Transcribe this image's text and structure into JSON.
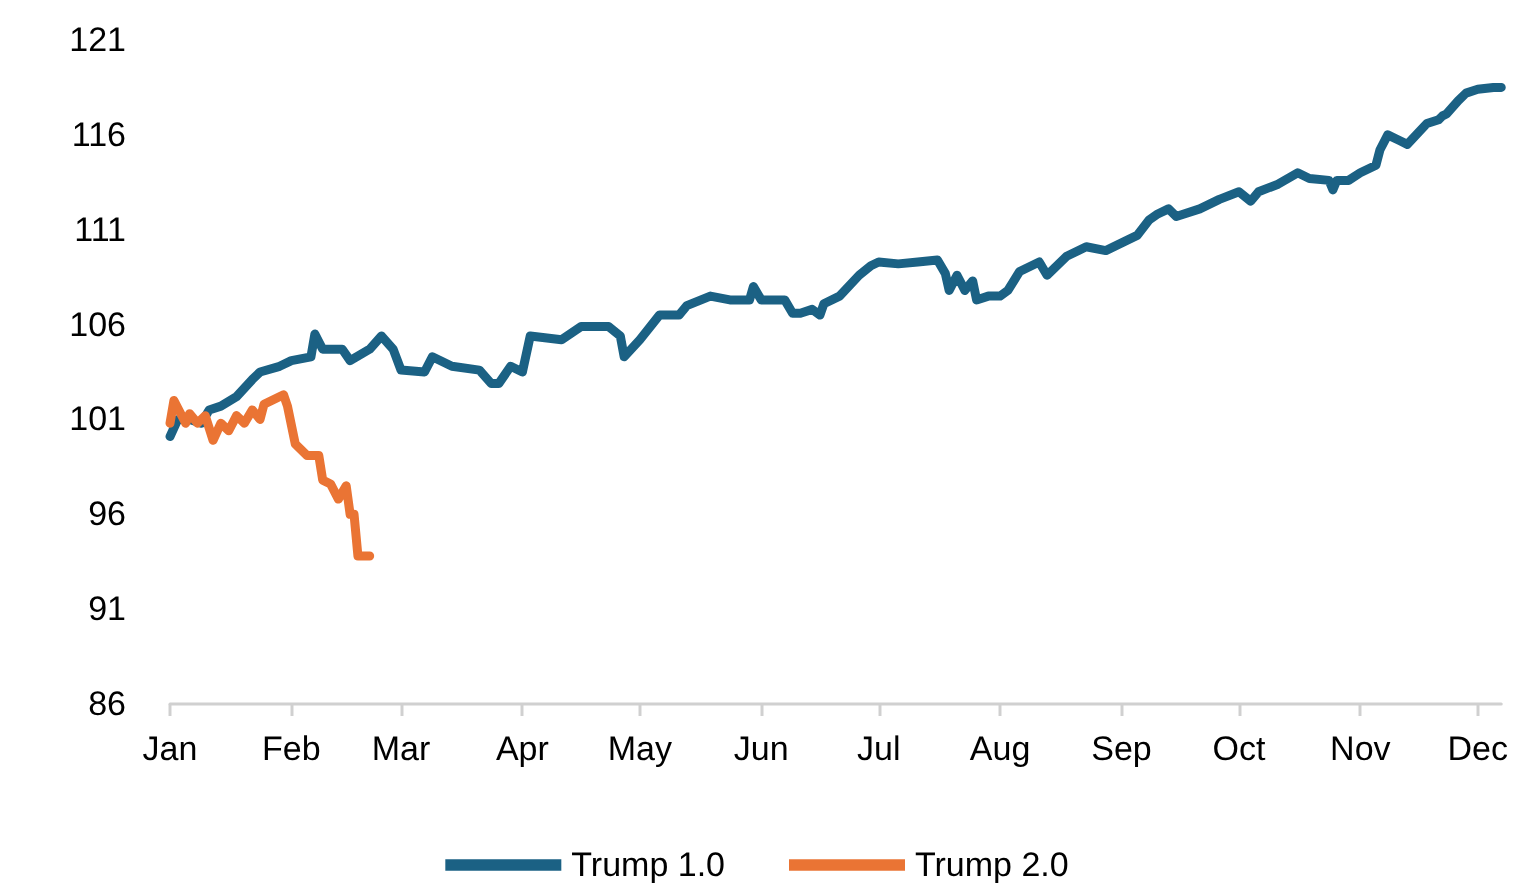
{
  "chart_data": {
    "type": "line",
    "legend": "bottom",
    "grid": false,
    "marker": "none",
    "line_style": "solid",
    "xlim": [
      "--01-01",
      "--12-07"
    ],
    "xticks": [
      {
        "value": "--01-01",
        "label": "Jan"
      },
      {
        "value": "--02-01",
        "label": "Feb"
      },
      {
        "value": "--03-01",
        "label": "Mar"
      },
      {
        "value": "--04-01",
        "label": "Apr"
      },
      {
        "value": "--05-01",
        "label": "May"
      },
      {
        "value": "--06-01",
        "label": "Jun"
      },
      {
        "value": "--07-01",
        "label": "Jul"
      },
      {
        "value": "--08-01",
        "label": "Aug"
      },
      {
        "value": "--09-01",
        "label": "Sep"
      },
      {
        "value": "--10-01",
        "label": "Oct"
      },
      {
        "value": "--11-01",
        "label": "Nov"
      },
      {
        "value": "--12-01",
        "label": "Dec"
      }
    ],
    "ylim": [
      86,
      121
    ],
    "yticks": [
      86,
      91,
      96,
      101,
      106,
      111,
      116,
      121
    ],
    "series": [
      {
        "name": "Trump 1.0",
        "color": "#1b6184",
        "x": [
          "--01-01",
          "--01-03",
          "--01-06",
          "--01-09",
          "--01-11",
          "--01-14",
          "--01-18",
          "--01-22",
          "--01-24",
          "--01-29",
          "--02-01",
          "--02-06",
          "--02-07",
          "--02-09",
          "--02-14",
          "--02-16",
          "--02-21",
          "--02-24",
          "--02-27",
          "--03-01",
          "--03-07",
          "--03-09",
          "--03-14",
          "--03-21",
          "--03-24",
          "--03-26",
          "--03-29",
          "--04-01",
          "--04-03",
          "--04-11",
          "--04-16",
          "--04-23",
          "--04-26",
          "--04-27",
          "--05-01",
          "--05-06",
          "--05-11",
          "--05-13",
          "--05-19",
          "--05-24",
          "--05-29",
          "--05-30",
          "--06-01",
          "--06-07",
          "--06-09",
          "--06-11",
          "--06-14",
          "--06-16",
          "--06-17",
          "--06-21",
          "--06-26",
          "--06-29",
          "--07-01",
          "--07-06",
          "--07-11",
          "--07-16",
          "--07-18",
          "--07-19",
          "--07-21",
          "--07-23",
          "--07-25",
          "--07-26",
          "--07-29",
          "--08-01",
          "--08-03",
          "--08-06",
          "--08-11",
          "--08-13",
          "--08-18",
          "--08-23",
          "--08-28",
          "--08-31",
          "--09-05",
          "--09-08",
          "--09-10",
          "--09-13",
          "--09-15",
          "--09-21",
          "--09-26",
          "--10-01",
          "--10-04",
          "--10-06",
          "--10-11",
          "--10-16",
          "--10-19",
          "--10-24",
          "--10-25",
          "--10-26",
          "--10-29",
          "--11-01",
          "--11-05",
          "--11-06",
          "--11-08",
          "--11-11",
          "--11-13",
          "--11-18",
          "--11-21",
          "--11-22",
          "--11-23",
          "--11-26",
          "--11-28",
          "--12-01",
          "--12-05",
          "--12-07"
        ],
        "values": [
          100.1,
          101.0,
          101.0,
          100.8,
          101.5,
          101.7,
          102.2,
          103.1,
          103.5,
          103.8,
          104.1,
          104.3,
          105.5,
          104.7,
          104.7,
          104.1,
          104.7,
          105.4,
          104.7,
          103.6,
          103.5,
          104.3,
          103.8,
          103.6,
          102.9,
          102.9,
          103.8,
          103.5,
          105.4,
          105.2,
          105.9,
          105.9,
          105.4,
          104.3,
          105.2,
          106.5,
          106.5,
          107.0,
          107.5,
          107.3,
          107.3,
          108.0,
          107.3,
          107.3,
          106.6,
          106.6,
          106.8,
          106.5,
          107.1,
          107.5,
          108.6,
          109.1,
          109.3,
          109.2,
          109.3,
          109.4,
          108.7,
          107.8,
          108.6,
          107.8,
          108.3,
          107.3,
          107.5,
          107.5,
          107.8,
          108.8,
          109.3,
          108.6,
          109.6,
          110.1,
          109.9,
          110.2,
          110.7,
          111.5,
          111.8,
          112.1,
          111.7,
          112.1,
          112.6,
          113.0,
          112.5,
          113.0,
          113.4,
          114.0,
          113.7,
          113.6,
          113.1,
          113.6,
          113.6,
          114.0,
          114.4,
          115.2,
          116.0,
          115.7,
          115.5,
          116.6,
          116.8,
          117.0,
          117.1,
          117.8,
          118.2,
          118.4,
          118.5,
          118.5
        ]
      },
      {
        "name": "Trump 2.0",
        "color": "#ea7434",
        "x": [
          "--01-01",
          "--01-02",
          "--01-05",
          "--01-06",
          "--01-08",
          "--01-10",
          "--01-12",
          "--01-14",
          "--01-16",
          "--01-18",
          "--01-20",
          "--01-22",
          "--01-24",
          "--01-25",
          "--01-30",
          "--01-31",
          "--02-02",
          "--02-05",
          "--02-08",
          "--02-09",
          "--02-11",
          "--02-13",
          "--02-15",
          "--02-16",
          "--02-17",
          "--02-18",
          "--02-21"
        ],
        "values": [
          100.8,
          102.0,
          100.8,
          101.3,
          100.8,
          101.2,
          99.9,
          100.8,
          100.4,
          101.2,
          100.8,
          101.5,
          101.0,
          101.8,
          102.3,
          101.7,
          99.7,
          99.1,
          99.1,
          97.8,
          97.6,
          96.8,
          97.5,
          96.0,
          96.0,
          93.8,
          93.8
        ]
      }
    ]
  }
}
